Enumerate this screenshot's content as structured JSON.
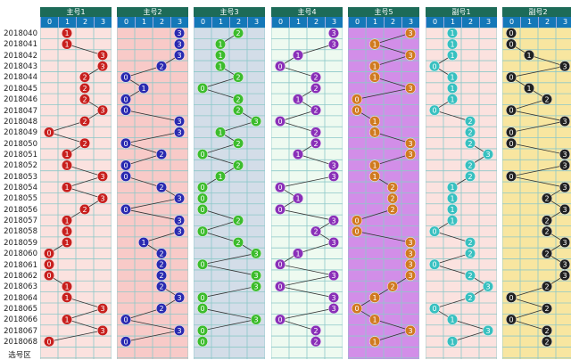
{
  "issues": [
    "2018040",
    "2018041",
    "2018042",
    "2018043",
    "2018044",
    "2018045",
    "2018046",
    "2018047",
    "2018048",
    "2018049",
    "2018050",
    "2018051",
    "2018052",
    "2018053",
    "2018054",
    "2018055",
    "2018056",
    "2018057",
    "2018058",
    "2018059",
    "2018060",
    "2018061",
    "2018062",
    "2018063",
    "2018064",
    "2018065",
    "2018066",
    "2018067",
    "2018068"
  ],
  "footer_label": "选号区",
  "columns": [
    "0",
    "1",
    "2",
    "3"
  ],
  "panels": [
    {
      "title": "主号1",
      "bg": "#fbe2df",
      "ball": "#c8201e",
      "values": [
        1,
        1,
        3,
        3,
        2,
        2,
        2,
        3,
        2,
        0,
        2,
        1,
        1,
        3,
        1,
        3,
        2,
        1,
        1,
        1,
        0,
        0,
        0,
        1,
        1,
        3,
        1,
        3,
        0
      ]
    },
    {
      "title": "主号2",
      "bg": "#f8cac8",
      "ball": "#2a2ab0",
      "values": [
        3,
        3,
        3,
        2,
        0,
        1,
        0,
        0,
        3,
        3,
        0,
        2,
        0,
        0,
        2,
        3,
        0,
        3,
        3,
        1,
        2,
        2,
        2,
        2,
        3,
        2,
        0,
        3,
        0
      ]
    },
    {
      "title": "主号3",
      "bg": "#d3dde8",
      "ball": "#3cbc2c",
      "values": [
        2,
        1,
        1,
        1,
        2,
        0,
        2,
        2,
        3,
        1,
        2,
        0,
        2,
        1,
        0,
        0,
        0,
        2,
        0,
        2,
        3,
        0,
        3,
        3,
        0,
        0,
        3,
        0,
        0
      ]
    },
    {
      "title": "主号4",
      "bg": "#eefaf0",
      "ball": "#8a30b8",
      "values": [
        3,
        3,
        1,
        0,
        2,
        2,
        1,
        2,
        0,
        2,
        2,
        1,
        3,
        3,
        0,
        1,
        0,
        3,
        2,
        3,
        1,
        0,
        3,
        0,
        3,
        3,
        0,
        2,
        2
      ]
    },
    {
      "title": "主号5",
      "bg": "#d28ee8",
      "ball": "#d07a20",
      "values": [
        3,
        1,
        3,
        1,
        1,
        3,
        0,
        0,
        1,
        1,
        3,
        3,
        1,
        1,
        2,
        2,
        2,
        0,
        0,
        3,
        3,
        3,
        3,
        2,
        1,
        0,
        1,
        3,
        1
      ]
    },
    {
      "title": "副号1",
      "bg": "#fbe2df",
      "ball": "#38c0c0",
      "values": [
        1,
        1,
        1,
        0,
        1,
        1,
        1,
        0,
        2,
        2,
        2,
        3,
        2,
        2,
        1,
        1,
        1,
        1,
        0,
        2,
        2,
        0,
        2,
        3,
        2,
        0,
        1,
        3,
        1
      ]
    },
    {
      "title": "副号2",
      "bg": "#f8e6a0",
      "ball": "#222222",
      "values": [
        0,
        0,
        1,
        3,
        0,
        1,
        2,
        0,
        3,
        0,
        0,
        3,
        3,
        0,
        3,
        2,
        3,
        2,
        2,
        3,
        2,
        3,
        3,
        2,
        0,
        2,
        0,
        2,
        2
      ]
    }
  ]
}
